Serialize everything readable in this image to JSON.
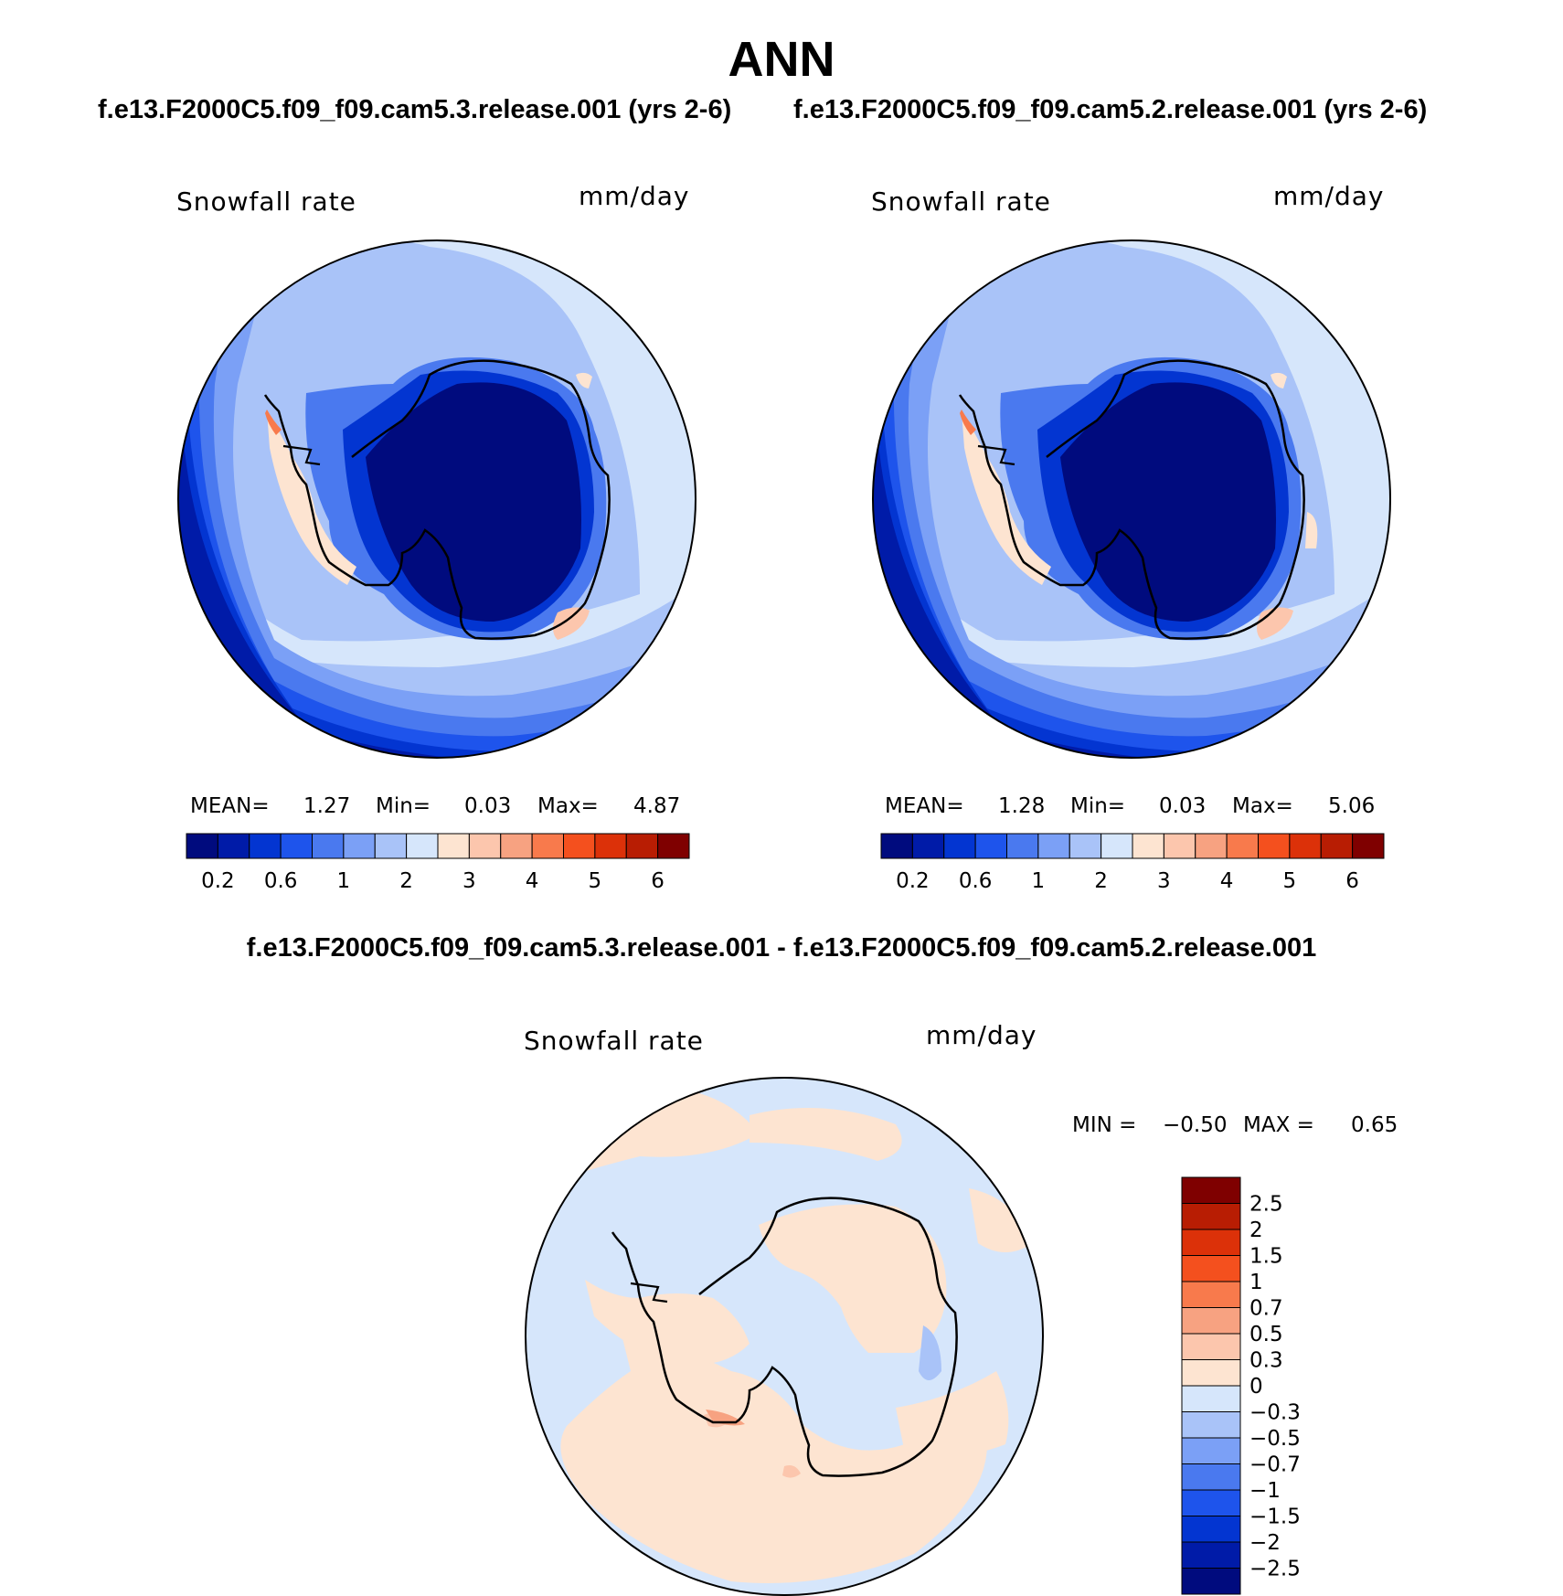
{
  "header": {
    "title": "ANN",
    "case_left": "f.e13.F2000C5.f09_f09.cam5.3.release.001 (yrs 2-6)",
    "case_right": "f.e13.F2000C5.f09_f09.cam5.2.release.001 (yrs 2-6)",
    "diff_title": "f.e13.F2000C5.f09_f09.cam5.3.release.001 - f.e13.F2000C5.f09_f09.cam5.2.release.001"
  },
  "panels": [
    {
      "variable": "Snowfall rate",
      "units": "mm/day",
      "mean_label": "MEAN=",
      "mean": "1.27",
      "min_label": "Min=",
      "min": "0.03",
      "max_label": "Max=",
      "max": "4.87"
    },
    {
      "variable": "Snowfall rate",
      "units": "mm/day",
      "mean_label": "MEAN=",
      "mean": "1.28",
      "min_label": "Min=",
      "min": "0.03",
      "max_label": "Max=",
      "max": "5.06"
    }
  ],
  "diff_panel": {
    "variable": "Snowfall rate",
    "units": "mm/day",
    "min_label": "MIN =",
    "min": "−0.50",
    "max_label": "MAX =",
    "max": "0.65"
  },
  "colorbar": {
    "colors": [
      "#000b7e",
      "#001ba8",
      "#0335d1",
      "#1e54ec",
      "#4a79ef",
      "#7ba0f6",
      "#a9c3f8",
      "#d6e6fb",
      "#fde4d1",
      "#fcc6ad",
      "#f7a281",
      "#f87a4c",
      "#f4501e",
      "#dc3109",
      "#b81d03",
      "#7f0000"
    ],
    "tick_labels": [
      "0.2",
      "0.6",
      "1",
      "2",
      "3",
      "4",
      "5",
      "6"
    ]
  },
  "diff_colorbar": {
    "colors_top_to_bottom": [
      "#7f0000",
      "#b81d03",
      "#dc3109",
      "#f4501e",
      "#f87a4c",
      "#f7a281",
      "#fcc6ad",
      "#fde4d1",
      "#d6e6fb",
      "#a9c3f8",
      "#7ba0f6",
      "#4a79ef",
      "#1e54ec",
      "#0335d1",
      "#001ba8",
      "#000b7e"
    ],
    "tick_labels": [
      "2.5",
      "2",
      "1.5",
      "1",
      "0.7",
      "0.5",
      "0.3",
      "0",
      "−0.3",
      "−0.5",
      "−0.7",
      "−1",
      "−1.5",
      "−2",
      "−2.5"
    ]
  },
  "colors": {
    "coastline": "#000000",
    "border": "#000000"
  }
}
